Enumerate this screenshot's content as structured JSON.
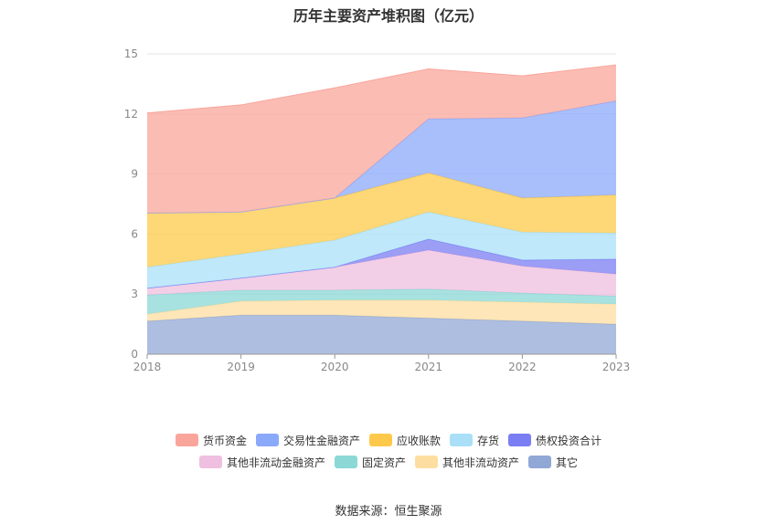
{
  "chart_data": {
    "type": "area",
    "stacked": true,
    "title": "历年主要资产堆积图（亿元）",
    "x": [
      "2018",
      "2019",
      "2020",
      "2021",
      "2022",
      "2023"
    ],
    "ylim": [
      0,
      15
    ],
    "yticks": [
      0,
      3,
      6,
      9,
      12,
      15
    ],
    "grid": true,
    "legend_position": "bottom",
    "series": [
      {
        "name": "其它",
        "color": "#91a8d6",
        "values": [
          1.65,
          1.95,
          1.95,
          1.8,
          1.65,
          1.5
        ]
      },
      {
        "name": "其他非流动资产",
        "color": "#fedea0",
        "values": [
          0.35,
          0.7,
          0.75,
          0.9,
          0.95,
          1.0
        ]
      },
      {
        "name": "固定资产",
        "color": "#8bd8d6",
        "values": [
          0.95,
          0.55,
          0.5,
          0.55,
          0.45,
          0.4
        ]
      },
      {
        "name": "其他非流动金融资产",
        "color": "#eebfdf",
        "values": [
          0.35,
          0.6,
          1.15,
          1.95,
          1.35,
          1.1
        ]
      },
      {
        "name": "债权投资合计",
        "color": "#7b7ef2",
        "values": [
          0,
          0,
          0,
          0.55,
          0.3,
          0.75
        ]
      },
      {
        "name": "存货",
        "color": "#a9e0f8",
        "values": [
          1.05,
          1.2,
          1.35,
          1.35,
          1.4,
          1.3
        ]
      },
      {
        "name": "应收账款",
        "color": "#fec94a",
        "values": [
          2.7,
          2.1,
          2.1,
          1.95,
          1.7,
          1.9
        ]
      },
      {
        "name": "交易性金融资产",
        "color": "#8ba9fb",
        "values": [
          0,
          0,
          0,
          2.7,
          4.0,
          4.7
        ]
      },
      {
        "name": "货币资金",
        "color": "#f9a59b",
        "values": [
          5.0,
          5.35,
          5.5,
          2.5,
          2.1,
          1.8
        ]
      }
    ],
    "legend_order": [
      "货币资金",
      "交易性金融资产",
      "应收账款",
      "存货",
      "债权投资合计",
      "其他非流动金融资产",
      "固定资产",
      "其他非流动资产",
      "其它"
    ],
    "source": "数据来源：恒生聚源"
  }
}
